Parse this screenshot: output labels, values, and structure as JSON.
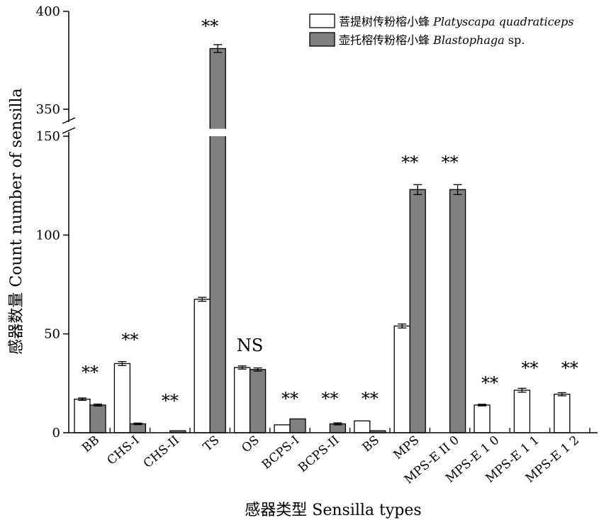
{
  "chart_data": {
    "type": "bar",
    "xlabel": "感器类型 Sensilla types",
    "ylabel": "感器数量  Count number of sensilla",
    "y_axis_break": {
      "lower_range": [
        0,
        150
      ],
      "upper_range": [
        340,
        400
      ]
    },
    "y_ticks": [
      0,
      50,
      100,
      150,
      350,
      400
    ],
    "categories": [
      "BB",
      "CHS-I",
      "CHS-II",
      "TS",
      "OS",
      "BCPS-I",
      "BCPS-II",
      "BS",
      "MPS",
      "MPS-E II 0",
      "MPS-E 1 0",
      "MPS-E 1 1",
      "MPS-E 1 2"
    ],
    "series": [
      {
        "name": "菩提树传粉榕小蜂 Platyscapa quadraticeps",
        "name_plain": "菩提树传粉榕小蜂 ",
        "name_italic": "Platyscapa quadraticeps",
        "name_suffix": "",
        "color": "#ffffff",
        "values": [
          17,
          35,
          0,
          67.5,
          33,
          4,
          0,
          6,
          54,
          0,
          14,
          21.5,
          19.5
        ],
        "errors": [
          0.6,
          1.0,
          0,
          1.0,
          0.8,
          0,
          0,
          0,
          1.0,
          0,
          0.4,
          1.0,
          0.8
        ]
      },
      {
        "name": "壶托榕传粉榕小蜂 Blastophaga sp.",
        "name_plain": "壶托榕传粉榕小蜂 ",
        "name_italic": "Blastophaga",
        "name_suffix": " sp.",
        "color": "#808080",
        "values": [
          14,
          4.5,
          1,
          381,
          32,
          7,
          4.5,
          1,
          123,
          123,
          0,
          0,
          0
        ],
        "errors": [
          0.5,
          0.4,
          0,
          2.0,
          0.8,
          0,
          0.5,
          0,
          2.5,
          2.5,
          0,
          0,
          0
        ]
      }
    ],
    "significance": [
      "**",
      "**",
      "**",
      "**",
      "NS",
      "**",
      "**",
      "**",
      "**",
      "**",
      "**",
      "**",
      "**"
    ],
    "legend_position": "top-right",
    "grid": false
  }
}
